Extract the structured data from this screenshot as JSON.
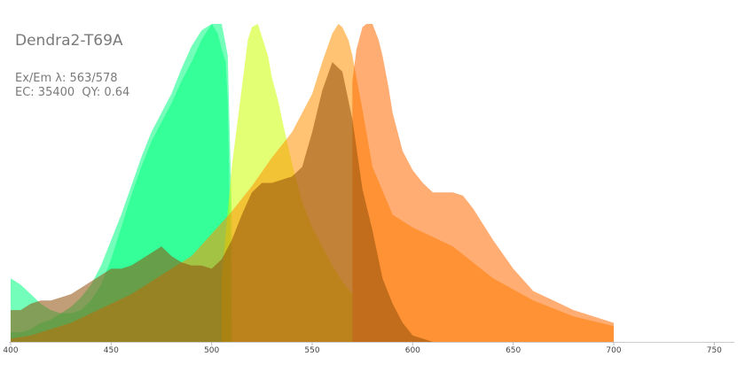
{
  "title": "Dendra2-T69A",
  "info": {
    "ex_em": "Ex/Em λ: 563/578",
    "ec_qy": "EC: 35400  QY: 0.64"
  },
  "chart_data": {
    "type": "area",
    "title": "Dendra2-T69A",
    "xlabel": "",
    "ylabel": "",
    "xlim": [
      400,
      760
    ],
    "ylim": [
      0,
      1
    ],
    "x_ticks": [
      "400",
      "450",
      "500",
      "550",
      "600",
      "650",
      "700",
      "750"
    ],
    "grid": false,
    "legend": "none",
    "series": [
      {
        "color": "#00ff80",
        "x": [
          400,
          405,
          410,
          415,
          420,
          425,
          430,
          435,
          440,
          445,
          450,
          455,
          460,
          465,
          470,
          475,
          480,
          485,
          490,
          495,
          500,
          503,
          505,
          507,
          508,
          509,
          510
        ],
        "y": [
          0.03,
          0.03,
          0.04,
          0.06,
          0.07,
          0.09,
          0.11,
          0.14,
          0.18,
          0.24,
          0.32,
          0.4,
          0.49,
          0.58,
          0.66,
          0.72,
          0.78,
          0.86,
          0.93,
          0.98,
          1.0,
          0.97,
          0.92,
          0.88,
          0.75,
          0.4,
          0.05
        ]
      },
      {
        "color": "#00ff80",
        "x": [
          400,
          405,
          410,
          415,
          420,
          425,
          430,
          435,
          440,
          445,
          450,
          455,
          460,
          465,
          470,
          475,
          480,
          485,
          490,
          495,
          500,
          505,
          508,
          510
        ],
        "y": [
          0.2,
          0.18,
          0.15,
          0.12,
          0.1,
          0.09,
          0.09,
          0.1,
          0.13,
          0.18,
          0.26,
          0.36,
          0.46,
          0.55,
          0.63,
          0.69,
          0.75,
          0.82,
          0.88,
          0.95,
          1.0,
          1.0,
          0.9,
          0.4
        ]
      },
      {
        "color": "#ccff00",
        "x": [
          505,
          510,
          515,
          518,
          520,
          523,
          525,
          528,
          530,
          533,
          535,
          540,
          545,
          550,
          555,
          560,
          565,
          570
        ],
        "y": [
          0.2,
          0.55,
          0.8,
          0.95,
          0.99,
          1.0,
          0.96,
          0.9,
          0.83,
          0.76,
          0.7,
          0.56,
          0.44,
          0.36,
          0.3,
          0.24,
          0.19,
          0.15
        ]
      },
      {
        "color": "#ff9100",
        "x": [
          400,
          410,
          420,
          430,
          440,
          450,
          460,
          470,
          480,
          490,
          500,
          510,
          520,
          530,
          540,
          550,
          555,
          560,
          563,
          565,
          568,
          570,
          575,
          580,
          590,
          600,
          610,
          620,
          630,
          640,
          660,
          680,
          700
        ],
        "y": [
          0.01,
          0.02,
          0.04,
          0.06,
          0.09,
          0.12,
          0.15,
          0.19,
          0.23,
          0.27,
          0.34,
          0.41,
          0.49,
          0.58,
          0.66,
          0.78,
          0.88,
          0.97,
          1.0,
          0.99,
          0.95,
          0.9,
          0.73,
          0.55,
          0.4,
          0.36,
          0.33,
          0.3,
          0.25,
          0.2,
          0.13,
          0.08,
          0.05
        ]
      },
      {
        "color": "#ff6a00",
        "x": [
          570,
          572,
          575,
          577,
          580,
          583,
          585,
          588,
          590,
          595,
          600,
          605,
          610,
          615,
          620,
          625,
          630,
          635,
          640,
          650,
          660,
          670,
          680,
          690,
          700
        ],
        "y": [
          0.82,
          0.92,
          0.99,
          1.0,
          1.0,
          0.95,
          0.9,
          0.8,
          0.72,
          0.6,
          0.54,
          0.5,
          0.47,
          0.47,
          0.47,
          0.46,
          0.42,
          0.37,
          0.32,
          0.23,
          0.16,
          0.13,
          0.1,
          0.08,
          0.06
        ]
      },
      {
        "color": "#8f4f0a",
        "x": [
          400,
          405,
          410,
          415,
          420,
          425,
          430,
          435,
          440,
          445,
          450,
          455,
          460,
          465,
          470,
          475,
          480,
          485,
          490,
          495,
          500,
          505,
          510,
          515,
          520,
          525,
          530,
          535,
          540,
          545,
          550,
          555,
          560,
          565,
          570,
          575,
          580,
          585,
          590,
          595,
          600,
          605,
          610,
          620,
          630,
          640,
          660,
          680,
          700
        ],
        "y": [
          0.1,
          0.1,
          0.12,
          0.13,
          0.13,
          0.14,
          0.15,
          0.17,
          0.19,
          0.21,
          0.23,
          0.23,
          0.24,
          0.26,
          0.28,
          0.3,
          0.27,
          0.25,
          0.24,
          0.24,
          0.23,
          0.26,
          0.32,
          0.4,
          0.47,
          0.5,
          0.5,
          0.51,
          0.52,
          0.55,
          0.66,
          0.79,
          0.88,
          0.85,
          0.7,
          0.48,
          0.35,
          0.2,
          0.12,
          0.06,
          0.02,
          0.01,
          0.0,
          0.0,
          0.0,
          0.0,
          0.0,
          0.0,
          0.0
        ]
      }
    ]
  }
}
